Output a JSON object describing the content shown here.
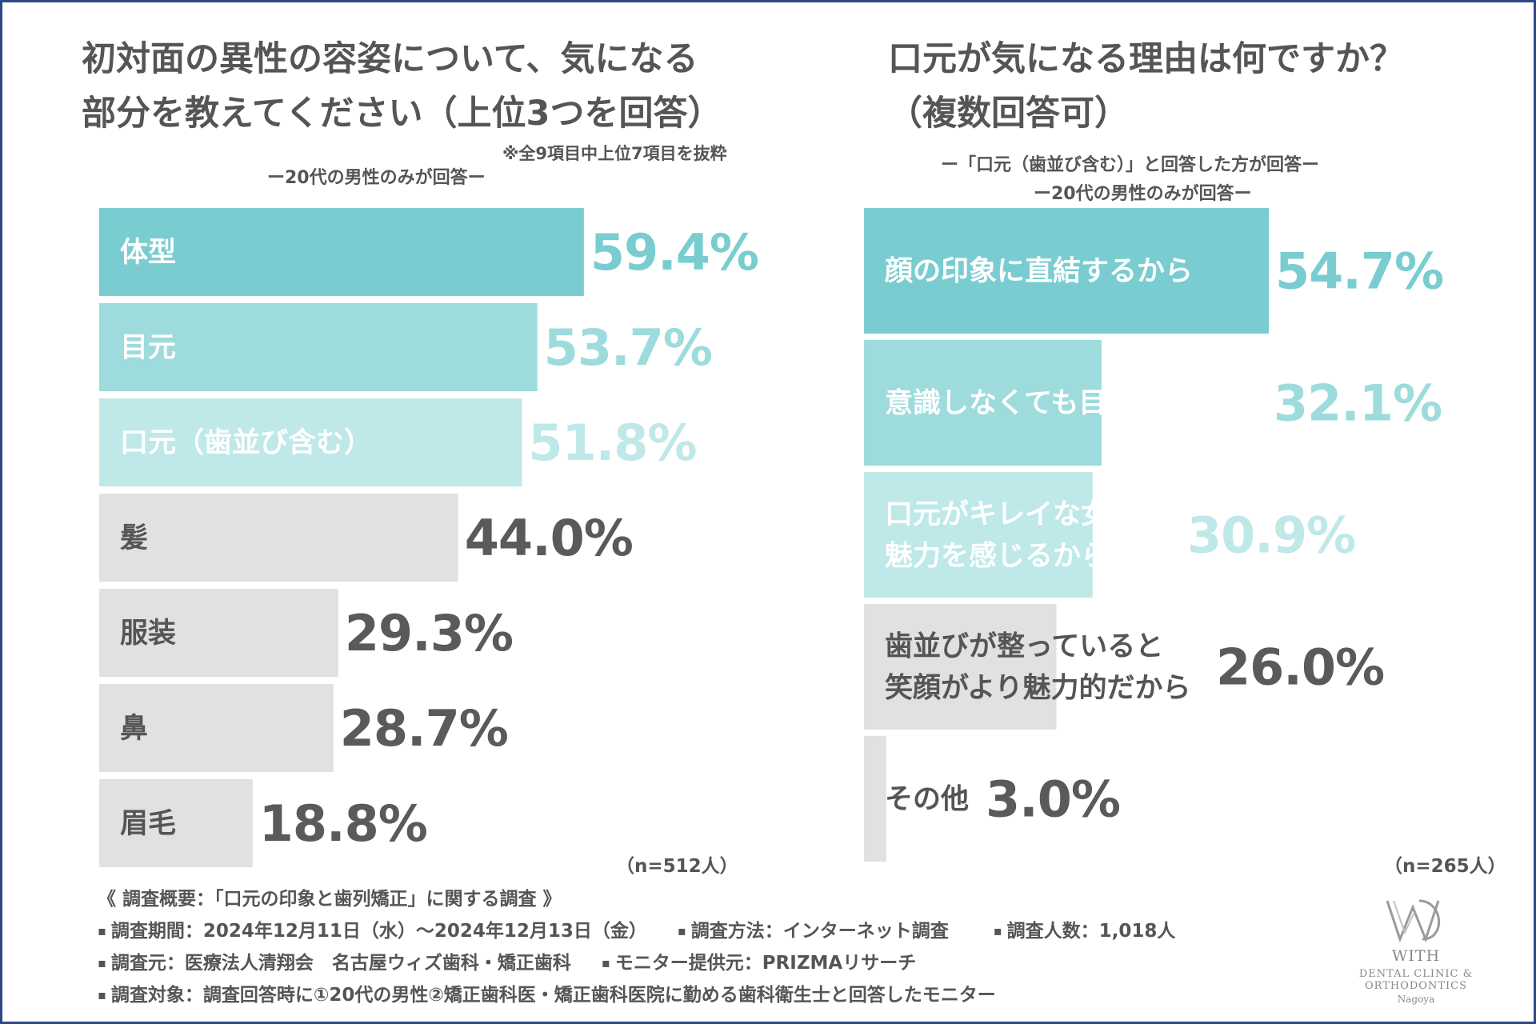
{
  "left": {
    "title_line1": "初対面の異性の容姿について、気になる",
    "title_line2": "部分を教えてください（上位3つを回答）",
    "note": "※全9項目中上位7項目を抜粋",
    "subtitle": "ー20代の男性のみが回答ー",
    "sample": "（n=512人）"
  },
  "right": {
    "title_line1": "口元が気になる理由は何ですか？",
    "title_line2": "（複数回答可）",
    "subtitle1": "ー「口元（歯並び含む）」と回答した方が回答ー",
    "subtitle2": "ー20代の男性のみが回答ー",
    "sample": "（n=265人）"
  },
  "chart_data": [
    {
      "type": "bar",
      "orientation": "horizontal",
      "title": "初対面の異性の容姿について、気になる部分を教えてください（上位3つを回答）",
      "unit": "%",
      "xlim": [
        0,
        100
      ],
      "categories": [
        "体型",
        "目元",
        "口元（歯並び含む）",
        "髪",
        "服装",
        "鼻",
        "眉毛"
      ],
      "values": [
        59.4,
        53.7,
        51.8,
        44.0,
        29.3,
        28.7,
        18.8
      ],
      "value_labels": [
        "59.4%",
        "53.7%",
        "51.8%",
        "44.0%",
        "29.3%",
        "28.7%",
        "18.8%"
      ],
      "colors": [
        "#79cdd0",
        "#9ddbdc",
        "#bfe8e9",
        "#e1e1e1",
        "#e1e1e1",
        "#e1e1e1",
        "#e1e1e1"
      ],
      "label_colors": [
        "#ffffff",
        "#ffffff",
        "#ffffff",
        "#555555",
        "#555555",
        "#555555",
        "#555555"
      ],
      "value_colors": [
        "#79cdd0",
        "#9ddbdc",
        "#bfe8e9",
        "#5a5a5a",
        "#5a5a5a",
        "#5a5a5a",
        "#5a5a5a"
      ]
    },
    {
      "type": "bar",
      "orientation": "horizontal",
      "title": "口元が気になる理由は何ですか？（複数回答可）",
      "unit": "%",
      "xlim": [
        0,
        100
      ],
      "categories": [
        "顔の印象に直結するから",
        "意識しなくても目につくから",
        "口元がキレイな女性に魅力を感じるから",
        "歯並びが整っていると笑顔がより魅力的だから",
        "その他"
      ],
      "label_lines": [
        [
          "顔の印象に直結するから"
        ],
        [
          "意識しなくても目につくから"
        ],
        [
          "口元がキレイな女性に",
          "魅力を感じるから"
        ],
        [
          "歯並びが整っていると",
          "笑顔がより魅力的だから"
        ],
        [
          "その他"
        ]
      ],
      "values": [
        54.7,
        32.1,
        30.9,
        26.0,
        3.0
      ],
      "value_labels": [
        "54.7%",
        "32.1%",
        "30.9%",
        "26.0%",
        "3.0%"
      ],
      "colors": [
        "#79cdd0",
        "#9ddbdc",
        "#bfe8e9",
        "#e1e1e1",
        "#e1e1e1"
      ],
      "label_colors": [
        "#ffffff",
        "#ffffff",
        "#ffffff",
        "#555555",
        "#555555"
      ],
      "value_colors": [
        "#79cdd0",
        "#9ddbdc",
        "#bfe8e9",
        "#5a5a5a",
        "#5a5a5a"
      ]
    }
  ],
  "footer": {
    "heading": "《 調査概要：「口元の印象と歯列矯正」に関する調査 》",
    "bullet": "▪",
    "period": "調査期間：2024年12月11日（水）～2024年12月13日（金）",
    "method": "調査方法：インターネット調査",
    "count": "調査人数：1,018人",
    "source": "調査元：医療法人清翔会　名古屋ウィズ歯科・矯正歯科",
    "monitor": "モニター提供元：PRIZMAリサーチ",
    "target": "調査対象：調査回答時に①20代の男性②矯正歯科医・矯正歯科医院に勤める歯科衛生士と回答したモニター"
  },
  "logo": {
    "brand": "WITH",
    "subbrand": "DENTAL CLINIC & ORTHODONTICS",
    "city": "Nagoya"
  }
}
